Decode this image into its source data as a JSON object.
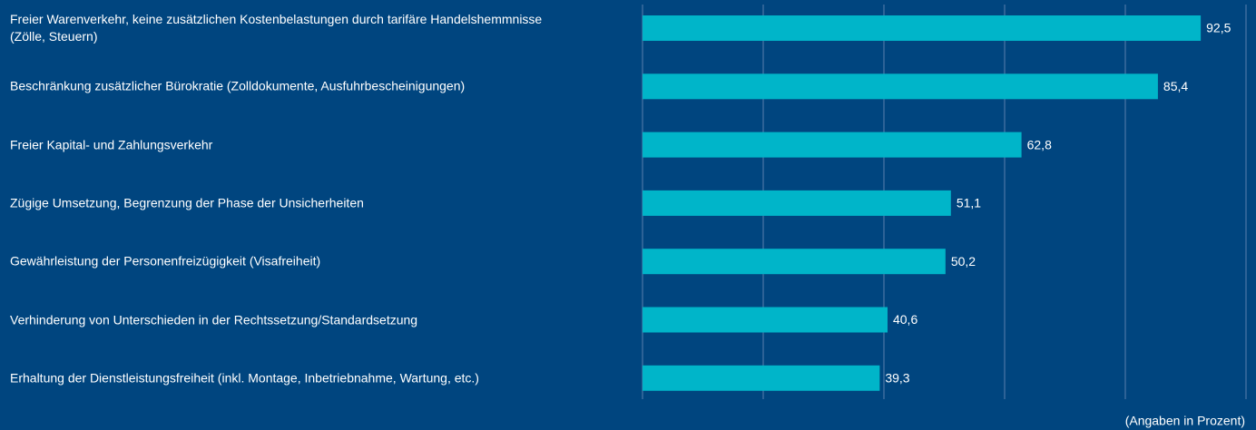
{
  "chart_data": {
    "type": "bar",
    "orientation": "horizontal",
    "categories": [
      "Freier Warenverkehr, keine zusätzlichen Kostenbelastungen durch tarifäre Handelshemmnisse (Zölle, Steuern)",
      "Beschränkung zusätzlicher Bürokratie (Zolldokumente, Ausfuhrbescheinigungen)",
      "Freier Kapital- und Zahlungsverkehr",
      "Zügige Umsetzung, Begrenzung der Phase der Unsicherheiten",
      "Gewährleistung der Personenfreizügigkeit (Visafreiheit)",
      "Verhinderung von Unterschieden in der Rechtssetzung/Standardsetzung",
      "Erhaltung der Dienstleistungsfreiheit (inkl. Montage, Inbetriebnahme, Wartung, etc.)"
    ],
    "values": [
      92.5,
      85.4,
      62.8,
      51.1,
      50.2,
      40.6,
      39.3
    ],
    "value_labels": [
      "92,5",
      "85,4",
      "62,8",
      "51,1",
      "50,2",
      "40,6",
      "39,3"
    ],
    "color": "#00b5c9",
    "xlim": [
      0,
      100
    ],
    "xticks": [
      0,
      20,
      40,
      60,
      80,
      100
    ],
    "grid": true,
    "note": "(Angaben in Prozent)"
  }
}
